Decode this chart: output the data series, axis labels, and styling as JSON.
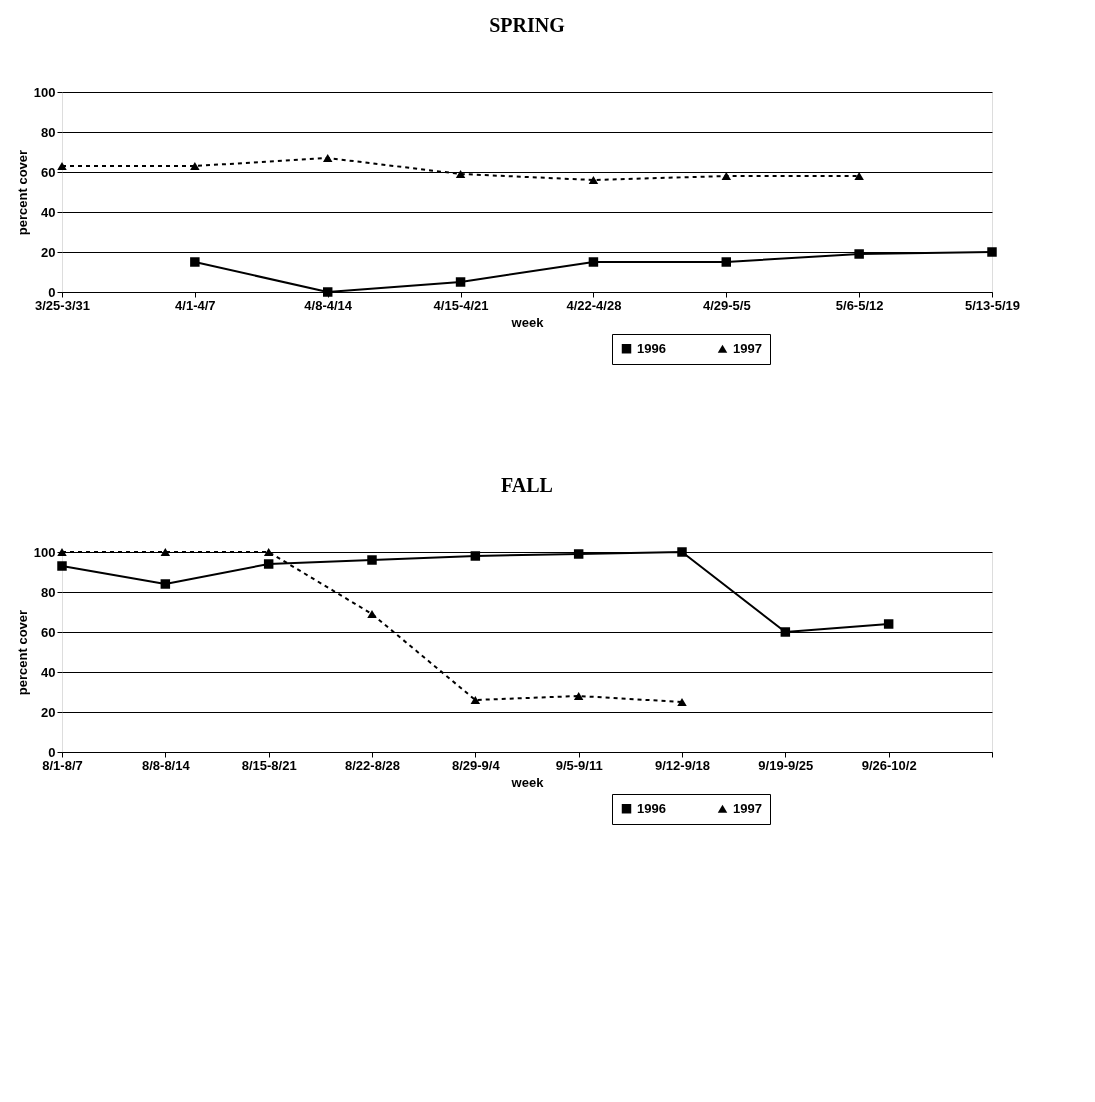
{
  "chart_data": [
    {
      "type": "line",
      "title": "SPRING",
      "xlabel": "week",
      "ylabel": "percent cover",
      "categories": [
        "3/25-3/31",
        "4/1-4/7",
        "4/8-4/14",
        "4/15-4/21",
        "4/22-4/28",
        "4/29-5/5",
        "5/6-5/12",
        "5/13-5/19"
      ],
      "series": [
        {
          "name": "1996",
          "color": "#000000",
          "marker": "square",
          "line_style": "solid",
          "values": [
            null,
            15,
            0,
            5,
            15,
            15,
            19,
            20
          ]
        },
        {
          "name": "1997",
          "color": "#000000",
          "marker": "triangle",
          "line_style": "dashed",
          "values": [
            63,
            63,
            67,
            59,
            56,
            58,
            58,
            null
          ]
        }
      ],
      "ylim": [
        0,
        100
      ],
      "yticks": [
        0,
        20,
        40,
        60,
        80,
        100
      ],
      "grid": "y",
      "legend": "bottom right"
    },
    {
      "type": "line",
      "title": "FALL",
      "xlabel": "week",
      "ylabel": "percent cover",
      "categories": [
        "8/1-8/7",
        "8/8-8/14",
        "8/15-8/21",
        "8/22-8/28",
        "8/29-9/4",
        "9/5-9/11",
        "9/12-9/18",
        "9/19-9/25",
        "9/26-10/2",
        null
      ],
      "series": [
        {
          "name": "1996",
          "color": "#000000",
          "marker": "square",
          "line_style": "solid",
          "values": [
            93,
            84,
            94,
            96,
            98,
            99,
            100,
            60,
            64,
            null
          ]
        },
        {
          "name": "1997",
          "color": "#000000",
          "marker": "triangle",
          "line_style": "dashed",
          "values": [
            100,
            100,
            100,
            69,
            26,
            28,
            25,
            null,
            null,
            null
          ]
        }
      ],
      "ylim": [
        0,
        100
      ],
      "yticks": [
        0,
        20,
        40,
        60,
        80,
        100
      ],
      "grid": "y",
      "legend": "bottom right"
    }
  ]
}
